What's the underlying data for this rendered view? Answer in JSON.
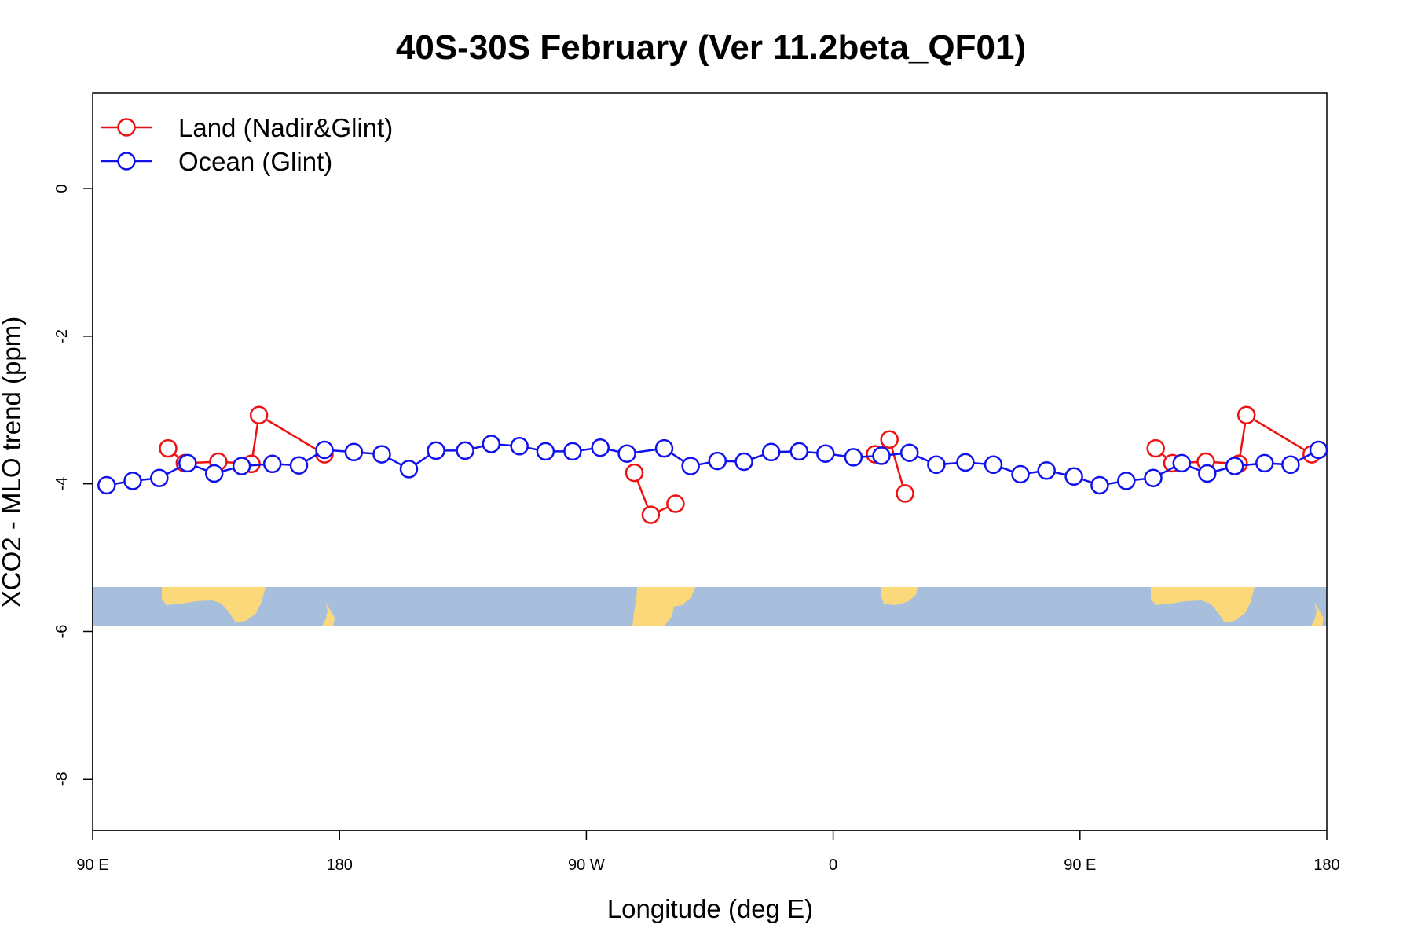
{
  "chart_data": {
    "type": "line",
    "title": "40S-30S February (Ver 11.2beta_QF01)",
    "xlabel": "Longitude (deg E)",
    "ylabel": "XCO2 - MLO trend (ppm)",
    "xlim": [
      90,
      540
    ],
    "ylim": [
      -8.7,
      1.3
    ],
    "x_ticks": [
      {
        "value": 90,
        "label": "90 E"
      },
      {
        "value": 180,
        "label": "180"
      },
      {
        "value": 270,
        "label": "90 W"
      },
      {
        "value": 360,
        "label": "0"
      },
      {
        "value": 450,
        "label": "90 E"
      },
      {
        "value": 540,
        "label": "180"
      }
    ],
    "y_ticks": [
      {
        "value": 0,
        "label": "0"
      },
      {
        "value": -2,
        "label": "-2"
      },
      {
        "value": -4,
        "label": "-4"
      },
      {
        "value": -6,
        "label": "-6"
      },
      {
        "value": -8,
        "label": "-8"
      }
    ],
    "legend_position": "top-left",
    "map_band": {
      "y_top": -5.38,
      "y_bottom": -5.92,
      "ocean_color": "#a7bfdc",
      "land_color": "#fbd97a"
    },
    "series": [
      {
        "name": "Land (Nadir&Glint)",
        "color": "#ee1111",
        "segments": [
          [
            [
              117.5,
              -3.52
            ],
            [
              123.6,
              -3.72
            ],
            [
              135.8,
              -3.7
            ],
            [
              147.9,
              -3.73
            ],
            [
              150.6,
              -3.07
            ],
            [
              174.5,
              -3.6
            ]
          ],
          [
            [
              287.5,
              -3.85
            ],
            [
              293.5,
              -4.42
            ],
            [
              302.5,
              -4.27
            ]
          ],
          [
            [
              375.3,
              -3.6
            ],
            [
              380.5,
              -3.4
            ],
            [
              386.2,
              -4.13
            ]
          ],
          [
            [
              477.6,
              -3.52
            ],
            [
              483.7,
              -3.72
            ],
            [
              495.9,
              -3.7
            ],
            [
              507.9,
              -3.73
            ],
            [
              510.7,
              -3.07
            ],
            [
              534.5,
              -3.6
            ]
          ]
        ]
      },
      {
        "name": "Ocean (Glint)",
        "color": "#1111ee",
        "segments": [
          [
            [
              95.1,
              -4.02
            ],
            [
              104.6,
              -3.96
            ],
            [
              114.3,
              -3.92
            ],
            [
              124.6,
              -3.72
            ],
            [
              134.3,
              -3.86
            ],
            [
              144.3,
              -3.76
            ],
            [
              155.5,
              -3.73
            ],
            [
              165.2,
              -3.75
            ],
            [
              174.5,
              -3.54
            ],
            [
              185.2,
              -3.57
            ],
            [
              195.4,
              -3.6
            ],
            [
              205.3,
              -3.8
            ],
            [
              215.2,
              -3.55
            ],
            [
              225.8,
              -3.55
            ],
            [
              235.3,
              -3.46
            ],
            [
              245.6,
              -3.49
            ],
            [
              255.1,
              -3.56
            ],
            [
              265.0,
              -3.56
            ],
            [
              275.1,
              -3.51
            ],
            [
              284.8,
              -3.59
            ],
            [
              298.4,
              -3.52
            ],
            [
              308.0,
              -3.76
            ],
            [
              317.8,
              -3.69
            ],
            [
              327.5,
              -3.7
            ],
            [
              337.4,
              -3.57
            ],
            [
              347.6,
              -3.56
            ],
            [
              357.2,
              -3.59
            ],
            [
              367.4,
              -3.64
            ],
            [
              377.6,
              -3.62
            ],
            [
              387.8,
              -3.58
            ],
            [
              397.6,
              -3.74
            ],
            [
              408.2,
              -3.71
            ],
            [
              418.4,
              -3.74
            ],
            [
              428.3,
              -3.87
            ],
            [
              437.8,
              -3.82
            ],
            [
              447.8,
              -3.9
            ],
            [
              457.2,
              -4.02
            ],
            [
              466.9,
              -3.96
            ],
            [
              476.7,
              -3.92
            ],
            [
              487.1,
              -3.72
            ],
            [
              496.4,
              -3.86
            ],
            [
              506.4,
              -3.76
            ],
            [
              517.3,
              -3.72
            ],
            [
              526.8,
              -3.74
            ],
            [
              537.0,
              -3.54
            ]
          ]
        ]
      }
    ]
  }
}
